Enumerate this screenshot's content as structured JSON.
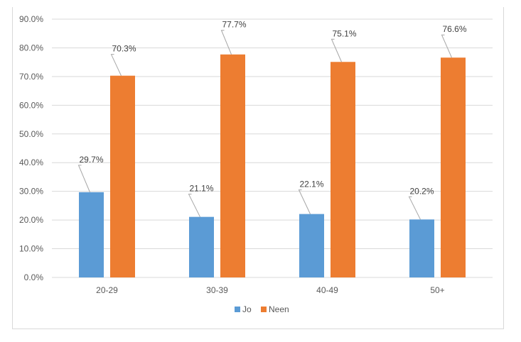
{
  "chart_data": {
    "type": "bar",
    "categories": [
      "20-29",
      "30-39",
      "40-49",
      "50+"
    ],
    "series": [
      {
        "name": "Jo",
        "color": "#5b9bd5",
        "values": [
          29.7,
          21.1,
          22.1,
          20.2
        ],
        "labels": [
          "29.7%",
          "21.1%",
          "22.1%",
          "20.2%"
        ]
      },
      {
        "name": "Neen",
        "color": "#ed7d31",
        "values": [
          70.3,
          77.7,
          75.1,
          76.6
        ],
        "labels": [
          "70.3%",
          "77.7%",
          "75.1%",
          "76.6%"
        ]
      }
    ],
    "ylim": [
      0,
      90
    ],
    "yticks": [
      0,
      10,
      20,
      30,
      40,
      50,
      60,
      70,
      80,
      90
    ],
    "ytick_labels": [
      "0.0%",
      "10.0%",
      "20.0%",
      "30.0%",
      "40.0%",
      "50.0%",
      "60.0%",
      "70.0%",
      "80.0%",
      "90.0%"
    ],
    "title": "",
    "xlabel": "",
    "ylabel": "",
    "grid": true,
    "legend": "bottom",
    "gridline_color": "#d9d9d9"
  }
}
